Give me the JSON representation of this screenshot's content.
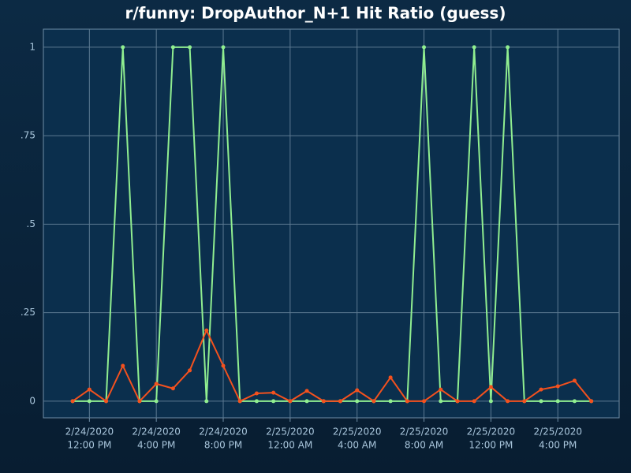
{
  "chart_data": {
    "type": "line",
    "title": "r/funny: DropAuthor_N+1 Hit Ratio (guess)",
    "x": [
      "2020-02-24T11:00",
      "2020-02-24T12:00",
      "2020-02-24T13:00",
      "2020-02-24T14:00",
      "2020-02-24T15:00",
      "2020-02-24T16:00",
      "2020-02-24T17:00",
      "2020-02-24T18:00",
      "2020-02-24T19:00",
      "2020-02-24T20:00",
      "2020-02-24T21:00",
      "2020-02-24T22:00",
      "2020-02-24T23:00",
      "2020-02-25T00:00",
      "2020-02-25T01:00",
      "2020-02-25T02:00",
      "2020-02-25T03:00",
      "2020-02-25T04:00",
      "2020-02-25T05:00",
      "2020-02-25T06:00",
      "2020-02-25T07:00",
      "2020-02-25T08:00",
      "2020-02-25T09:00",
      "2020-02-25T10:00",
      "2020-02-25T11:00",
      "2020-02-25T12:00",
      "2020-02-25T13:00",
      "2020-02-25T14:00",
      "2020-02-25T15:00",
      "2020-02-25T16:00",
      "2020-02-25T17:00",
      "2020-02-25T18:00"
    ],
    "series": [
      {
        "color": "#90ee90",
        "values": [
          0,
          0,
          0,
          1,
          0,
          0,
          1,
          1,
          0,
          1,
          0,
          0,
          0,
          0,
          0,
          0,
          0,
          0,
          0,
          0,
          0,
          1,
          0,
          0,
          1,
          0,
          1,
          0,
          0,
          0,
          0,
          0
        ]
      },
      {
        "color": "#f4511e",
        "values": [
          0,
          0.033,
          0,
          0.1,
          0,
          0.049,
          0.036,
          0.087,
          0.2,
          0.1,
          0,
          0.022,
          0.024,
          0,
          0.029,
          0,
          0,
          0.031,
          0,
          0.067,
          0,
          0,
          0.033,
          0,
          0,
          0.04,
          0,
          0,
          0.033,
          0.042,
          0.058,
          0
        ]
      }
    ],
    "xlim": [
      "2020-02-24T09:15",
      "2020-02-25T19:40"
    ],
    "xticks": [
      {
        "value": "2020-02-24T12:00",
        "label": [
          "2/24/2020",
          "12:00 PM"
        ]
      },
      {
        "value": "2020-02-24T16:00",
        "label": [
          "2/24/2020",
          "4:00 PM"
        ]
      },
      {
        "value": "2020-02-24T20:00",
        "label": [
          "2/24/2020",
          "8:00 PM"
        ]
      },
      {
        "value": "2020-02-25T00:00",
        "label": [
          "2/25/2020",
          "12:00 AM"
        ]
      },
      {
        "value": "2020-02-25T04:00",
        "label": [
          "2/25/2020",
          "4:00 AM"
        ]
      },
      {
        "value": "2020-02-25T08:00",
        "label": [
          "2/25/2020",
          "8:00 AM"
        ]
      },
      {
        "value": "2020-02-25T12:00",
        "label": [
          "2/25/2020",
          "12:00 PM"
        ]
      },
      {
        "value": "2020-02-25T16:00",
        "label": [
          "2/25/2020",
          "4:00 PM"
        ]
      }
    ],
    "ylim": [
      -0.047,
      1.051
    ],
    "yticks": [
      0,
      {
        "value": 0.25,
        "label": ".25"
      },
      {
        "value": 0.5,
        "label": ".5"
      },
      {
        "value": 0.75,
        "label": ".75"
      },
      1
    ],
    "grid": true
  }
}
